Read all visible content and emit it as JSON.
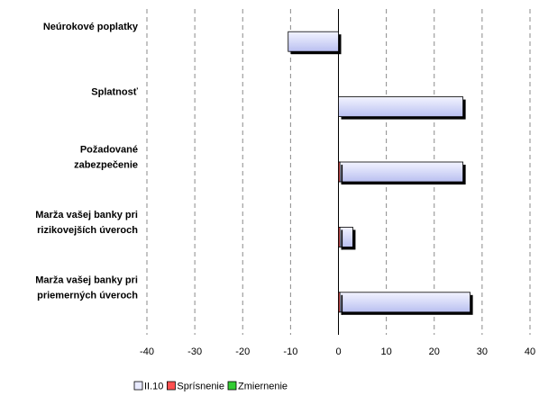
{
  "chart_data": {
    "type": "bar",
    "orientation": "horizontal",
    "categories": [
      [
        "Neúrokové poplatky"
      ],
      [
        "Splatnosť"
      ],
      [
        "Požadované",
        "zabezpečenie"
      ],
      [
        "Marža vašej banky pri",
        "rizikovejších úveroch"
      ],
      [
        "Marža vašej banky pri",
        "priemerných úveroch"
      ]
    ],
    "series": [
      {
        "name": "II.10",
        "values": [
          -10.5,
          26,
          26,
          3,
          27.5
        ],
        "color": "#d8dcf8"
      },
      {
        "name": "Sprísnenie",
        "values": [
          0,
          0,
          0.3,
          0.3,
          0.3
        ],
        "color": "#ff5050"
      },
      {
        "name": "Zmiernenie",
        "values": [
          0,
          0,
          0,
          0,
          0
        ],
        "color": "#33cc33"
      }
    ],
    "xlim": [
      -40,
      40
    ],
    "xticks": [
      "-40",
      "-30",
      "-20",
      "-10",
      "0",
      "10",
      "20",
      "30",
      "40"
    ],
    "grid": "vertical dashed",
    "legend_position": "bottom"
  }
}
